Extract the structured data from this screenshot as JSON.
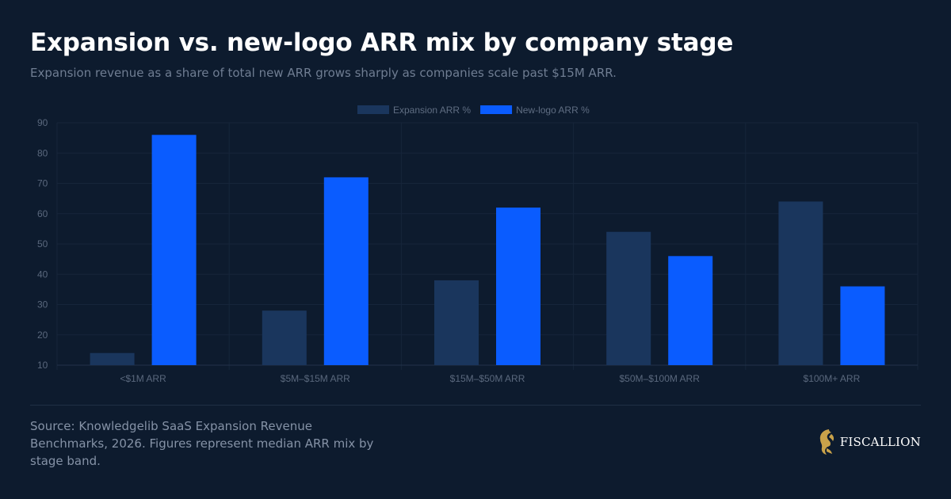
{
  "header": {
    "title": "Expansion vs. new-logo ARR mix by company stage",
    "subtitle": "Expansion revenue as a share of total new ARR grows sharply as companies scale past $15M ARR."
  },
  "chart_data": {
    "type": "bar",
    "categories": [
      "<$1M ARR",
      "$5M–$15M ARR",
      "$15M–$50M ARR",
      "$50M–$100M ARR",
      "$100M+ ARR"
    ],
    "series": [
      {
        "name": "Expansion ARR %",
        "values": [
          14,
          28,
          38,
          54,
          64
        ],
        "color": "#1a365d"
      },
      {
        "name": "New-logo ARR %",
        "values": [
          86,
          72,
          62,
          46,
          36
        ],
        "color": "#0a5cff"
      }
    ],
    "ylim": [
      10,
      90
    ],
    "yticks": [
      10,
      20,
      30,
      40,
      50,
      60,
      70,
      80,
      90
    ],
    "grid": true,
    "legend": "top-center"
  },
  "footer": {
    "source": "Source: Knowledgelib SaaS Expansion Revenue Benchmarks, 2026. Figures represent median ARR mix by stage band.",
    "brand": "FISCALLION",
    "brand_icon": "lion-head-logo",
    "brand_color": "#c9a24a"
  }
}
